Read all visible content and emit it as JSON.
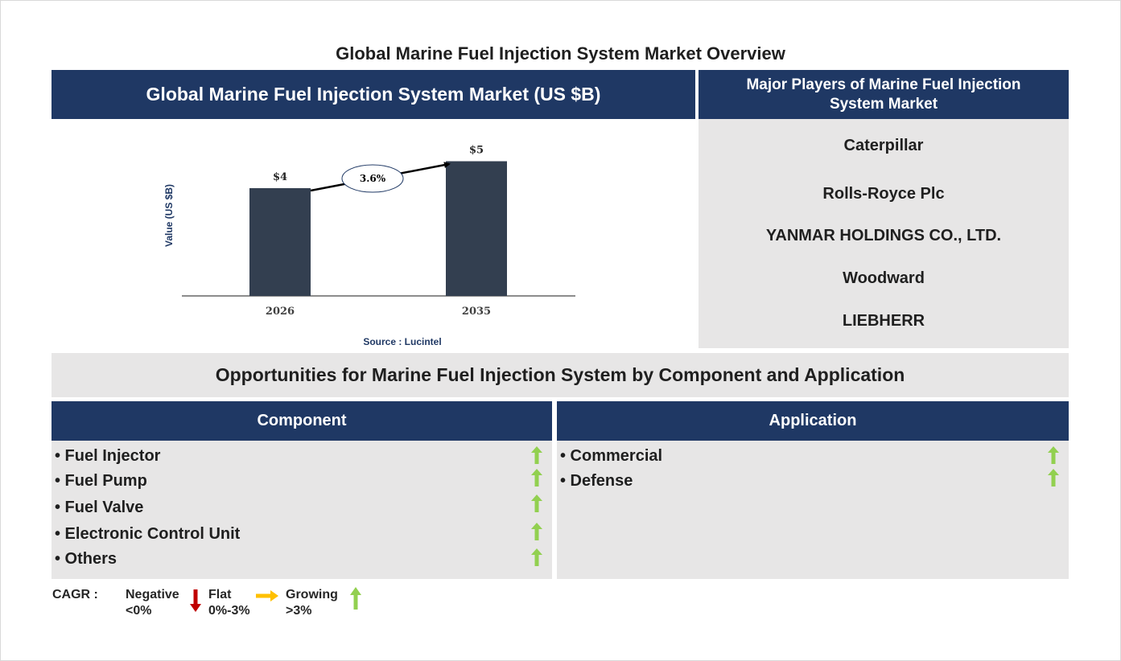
{
  "title": "Global Marine Fuel Injection System Market Overview",
  "market_header": "Global Marine Fuel Injection System Market (US $B)",
  "players_header": "Major Players of Marine Fuel Injection System Market",
  "players": [
    "Caterpillar",
    "Rolls-Royce Plc",
    "YANMAR HOLDINGS CO., LTD.",
    "Woodward",
    "LIEBHERR"
  ],
  "chart_data": {
    "type": "bar",
    "categories": [
      "2026",
      "2035"
    ],
    "values": [
      4,
      5
    ],
    "value_labels": [
      "$4",
      "$5"
    ],
    "ylabel": "Value (US $B)",
    "cagr_label": "3.6%",
    "source": "Source : Lucintel",
    "bar_color": "#333f50",
    "grid": false
  },
  "opportunities_title": "Opportunities for Marine Fuel Injection System by Component and Application",
  "component": {
    "header": "Component",
    "items": [
      "• Fuel Injector",
      "• Fuel Pump",
      "• Fuel Valve",
      "• Electronic Control Unit",
      "• Others"
    ],
    "trend": [
      "growing",
      "growing",
      "growing",
      "growing",
      "growing"
    ]
  },
  "application": {
    "header": "Application",
    "items": [
      "• Commercial",
      "• Defense"
    ],
    "trend": [
      "growing",
      "growing"
    ]
  },
  "legend": {
    "cagr_label": "CAGR :",
    "negative_label": "Negative",
    "negative_range": "<0%",
    "flat_label": "Flat",
    "flat_range": "0%-3%",
    "growing_label": "Growing",
    "growing_range": ">3%"
  },
  "colors": {
    "navy": "#1f3864",
    "panel_gray": "#e7e6e6",
    "growing_green": "#92d050",
    "negative_red": "#c00000",
    "flat_yellow": "#ffc000"
  },
  "icons": {
    "growing": "up-arrow-icon",
    "negative": "down-arrow-icon",
    "flat": "right-arrow-icon"
  }
}
